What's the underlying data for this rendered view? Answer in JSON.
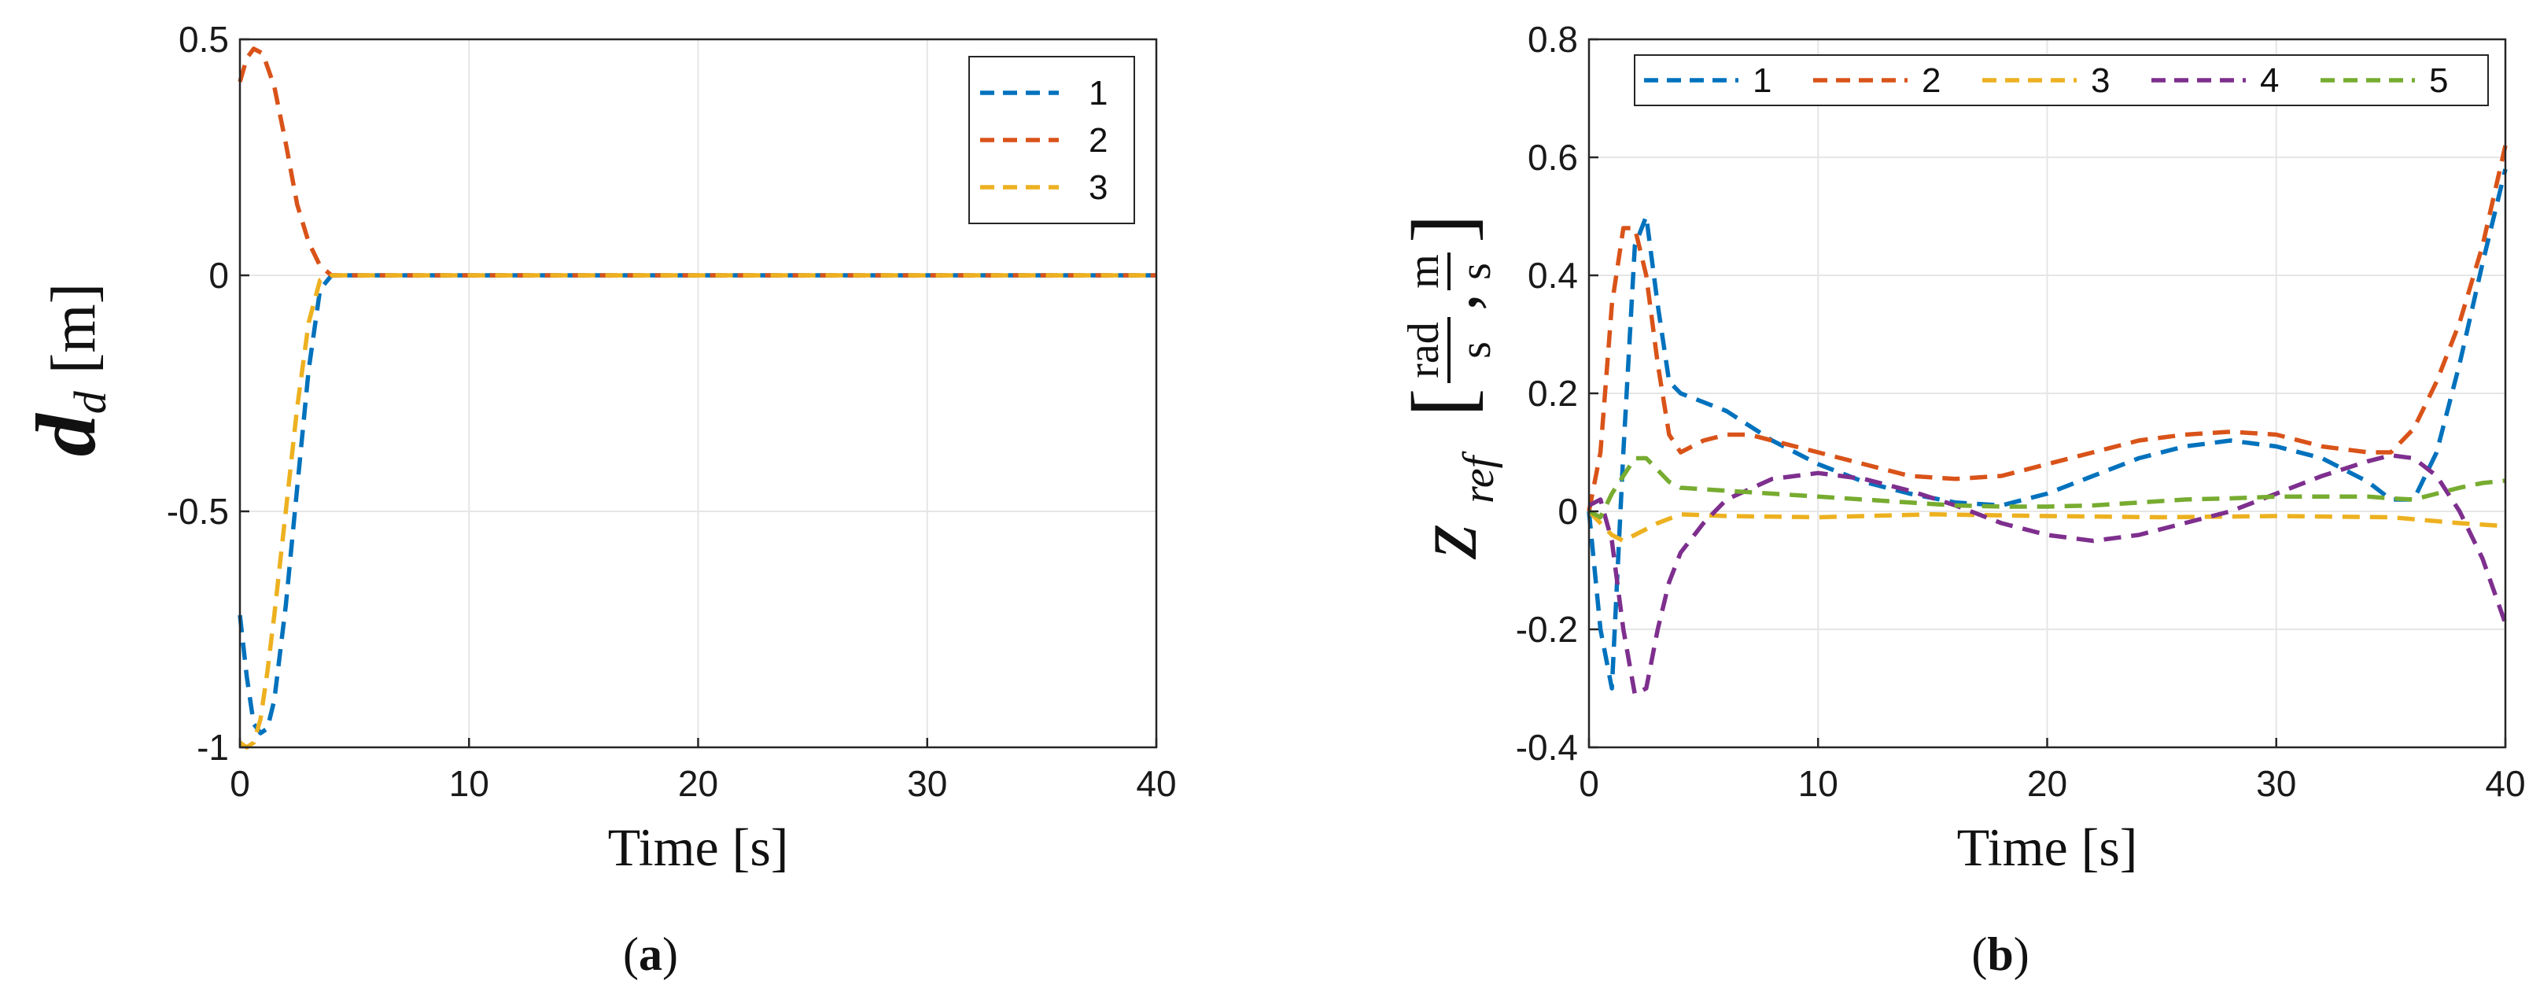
{
  "colors": {
    "blue": "#0072BD",
    "orange": "#D95319",
    "yellow": "#EDB120",
    "purple": "#7E2F8E",
    "green": "#77AC30",
    "grid": "#e6e6e6",
    "axis": "#262626"
  },
  "chart_data": [
    {
      "id": "a",
      "caption_letter": "a",
      "caption": "(a)",
      "type": "line",
      "xlabel": "Time [s]",
      "ylabel": "d_d [m]",
      "ylabel_parts": {
        "symbol": "d",
        "subscript": "d",
        "unit": "[m]"
      },
      "xlim": [
        0,
        40
      ],
      "ylim": [
        -1,
        0.5
      ],
      "xticks": [
        0,
        10,
        20,
        30,
        40
      ],
      "xtick_labels": [
        "0",
        "10",
        "20",
        "30",
        "40"
      ],
      "yticks": [
        -1,
        -0.5,
        0,
        0.5
      ],
      "ytick_labels": [
        "-1",
        "-0.5",
        "0",
        "0.5"
      ],
      "grid": true,
      "legend_position": "top-right",
      "series": [
        {
          "name": "1",
          "color": "blue",
          "x": [
            0,
            0.3,
            0.6,
            0.9,
            1.2,
            1.5,
            2,
            2.5,
            3,
            3.5,
            4,
            10,
            20,
            30,
            40
          ],
          "y": [
            -0.72,
            -0.85,
            -0.95,
            -0.97,
            -0.96,
            -0.9,
            -0.7,
            -0.45,
            -0.2,
            -0.03,
            0,
            0,
            0,
            0,
            0
          ]
        },
        {
          "name": "2",
          "color": "orange",
          "x": [
            0,
            0.3,
            0.6,
            1,
            1.5,
            2,
            2.5,
            3,
            3.5,
            4,
            10,
            20,
            30,
            40
          ],
          "y": [
            0.41,
            0.46,
            0.48,
            0.47,
            0.4,
            0.28,
            0.15,
            0.07,
            0.02,
            0,
            0,
            0,
            0,
            0
          ]
        },
        {
          "name": "3",
          "color": "yellow",
          "x": [
            0,
            0.3,
            0.6,
            0.9,
            1.2,
            1.5,
            2,
            2.5,
            3,
            3.5,
            4,
            10,
            20,
            30,
            40
          ],
          "y": [
            -0.99,
            -1.0,
            -0.99,
            -0.94,
            -0.84,
            -0.72,
            -0.5,
            -0.28,
            -0.1,
            -0.01,
            0,
            0,
            0,
            0,
            0
          ]
        }
      ]
    },
    {
      "id": "b",
      "caption_letter": "b",
      "caption": "(b)",
      "type": "line",
      "xlabel": "Time [s]",
      "ylabel": "z_ref [rad/s, m/s]",
      "ylabel_parts": {
        "symbol": "z",
        "subscript": "ref",
        "num1": "rad",
        "den1": "s",
        "num2": "m",
        "den2": "s"
      },
      "xlim": [
        0,
        40
      ],
      "ylim": [
        -0.4,
        0.8
      ],
      "xticks": [
        0,
        10,
        20,
        30,
        40
      ],
      "xtick_labels": [
        "0",
        "10",
        "20",
        "30",
        "40"
      ],
      "yticks": [
        -0.4,
        -0.2,
        0,
        0.2,
        0.4,
        0.6,
        0.8
      ],
      "ytick_labels": [
        "-0.4",
        "-0.2",
        "0",
        "0.2",
        "0.4",
        "0.6",
        "0.8"
      ],
      "grid": true,
      "legend_position": "top-right",
      "series": [
        {
          "name": "1",
          "color": "blue",
          "x": [
            0,
            0.5,
            1,
            1.5,
            2,
            2.5,
            3,
            3.5,
            4,
            6,
            8,
            10,
            12,
            14,
            16,
            18,
            20,
            22,
            24,
            26,
            28,
            30,
            32,
            34,
            35,
            36,
            37,
            38,
            39,
            40
          ],
          "y": [
            0.0,
            -0.2,
            -0.3,
            0.1,
            0.45,
            0.5,
            0.35,
            0.22,
            0.2,
            0.17,
            0.12,
            0.08,
            0.05,
            0.03,
            0.015,
            0.01,
            0.03,
            0.06,
            0.09,
            0.11,
            0.12,
            0.11,
            0.09,
            0.05,
            0.02,
            0.02,
            0.1,
            0.25,
            0.42,
            0.58
          ]
        },
        {
          "name": "2",
          "color": "orange",
          "x": [
            0,
            0.5,
            1,
            1.5,
            2,
            2.5,
            3,
            3.5,
            4,
            5,
            6,
            7,
            8,
            10,
            12,
            14,
            16,
            18,
            20,
            22,
            24,
            26,
            28,
            30,
            32,
            34,
            35,
            36,
            37,
            38,
            39,
            40
          ],
          "y": [
            0.0,
            0.1,
            0.35,
            0.48,
            0.48,
            0.4,
            0.25,
            0.13,
            0.1,
            0.12,
            0.13,
            0.13,
            0.12,
            0.1,
            0.08,
            0.06,
            0.055,
            0.06,
            0.08,
            0.1,
            0.12,
            0.13,
            0.135,
            0.13,
            0.11,
            0.1,
            0.1,
            0.14,
            0.22,
            0.32,
            0.45,
            0.62
          ]
        },
        {
          "name": "3",
          "color": "yellow",
          "x": [
            0,
            0.5,
            1,
            1.5,
            2,
            3,
            4,
            6,
            10,
            15,
            20,
            25,
            30,
            35,
            38,
            40
          ],
          "y": [
            0.0,
            -0.02,
            -0.04,
            -0.05,
            -0.04,
            -0.02,
            -0.005,
            -0.008,
            -0.01,
            -0.005,
            -0.008,
            -0.01,
            -0.008,
            -0.01,
            -0.02,
            -0.025
          ]
        },
        {
          "name": "4",
          "color": "purple",
          "x": [
            0,
            0.5,
            1,
            1.5,
            2,
            2.5,
            3,
            3.5,
            4,
            5,
            6,
            8,
            10,
            12,
            14,
            16,
            18,
            20,
            22,
            24,
            26,
            28,
            30,
            32,
            34,
            35,
            36,
            37,
            38,
            39,
            40
          ],
          "y": [
            0.01,
            0.02,
            -0.05,
            -0.2,
            -0.31,
            -0.3,
            -0.2,
            -0.12,
            -0.07,
            -0.02,
            0.02,
            0.055,
            0.065,
            0.055,
            0.035,
            0.01,
            -0.02,
            -0.04,
            -0.05,
            -0.04,
            -0.02,
            0.0,
            0.03,
            0.06,
            0.085,
            0.095,
            0.09,
            0.06,
            0.0,
            -0.08,
            -0.19
          ]
        },
        {
          "name": "5",
          "color": "green",
          "x": [
            0,
            0.5,
            1,
            1.5,
            2,
            2.5,
            3,
            3.5,
            4,
            6,
            8,
            10,
            12,
            14,
            16,
            18,
            20,
            22,
            24,
            26,
            28,
            30,
            32,
            34,
            35,
            36,
            37,
            38,
            39,
            40
          ],
          "y": [
            0.0,
            -0.01,
            0.03,
            0.06,
            0.09,
            0.09,
            0.07,
            0.05,
            0.04,
            0.035,
            0.03,
            0.025,
            0.02,
            0.015,
            0.01,
            0.008,
            0.008,
            0.01,
            0.015,
            0.02,
            0.022,
            0.025,
            0.025,
            0.025,
            0.022,
            0.02,
            0.03,
            0.04,
            0.048,
            0.052
          ]
        }
      ]
    }
  ]
}
